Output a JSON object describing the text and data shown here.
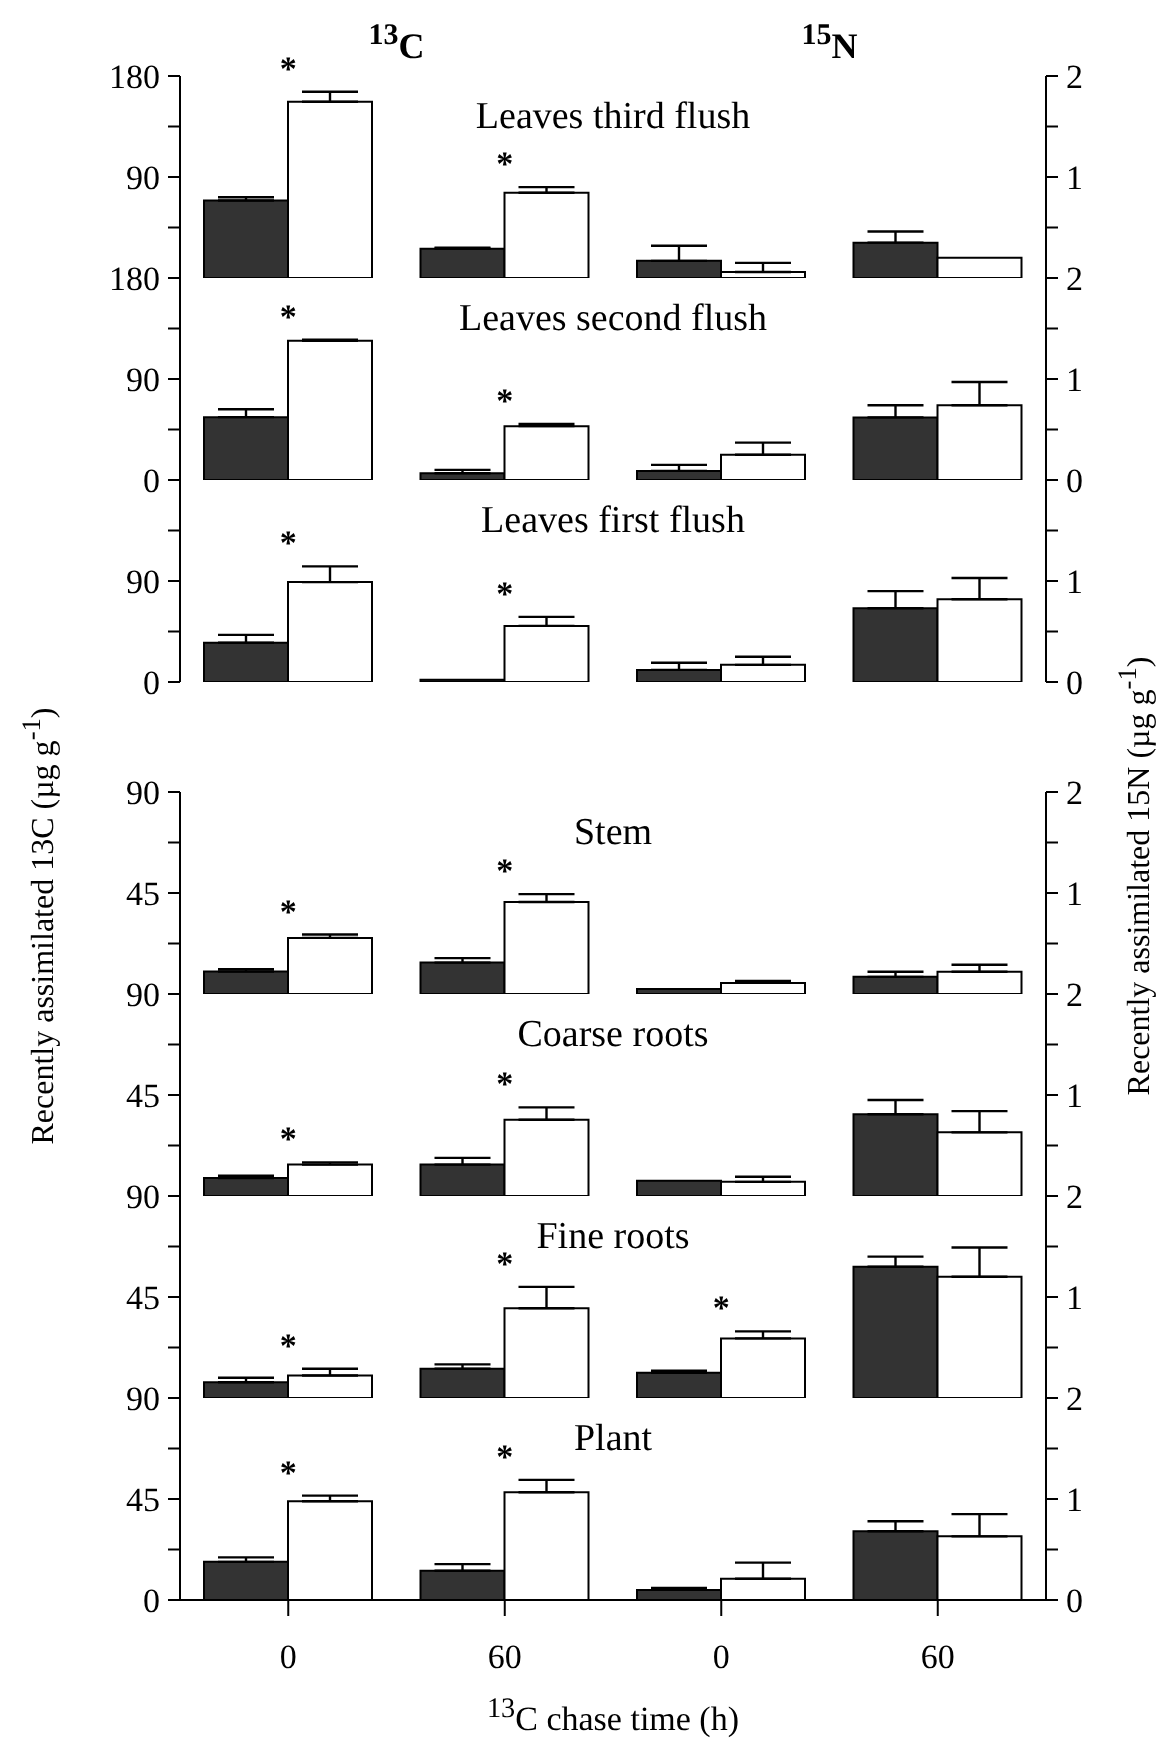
{
  "chart_data": [
    {
      "type": "other",
      "annotations": [
        "$^{13}$C",
        "$^{15}$N"
      ]
    },
    {
      "type": "bar",
      "title": "Leaves third flush",
      "categories": [
        "0",
        "60",
        "0",
        "60"
      ],
      "ylim": [
        0,
        180
      ],
      "yticks": [
        {
          "value": 0,
          "label": null
        },
        {
          "value": 45,
          "label": null
        },
        90,
        {
          "value": 135,
          "label": null
        },
        180
      ],
      "y2lim": [
        0,
        2
      ],
      "y2ticks": [
        {
          "value": 0,
          "label": null
        },
        {
          "value": 0.5,
          "label": null
        },
        1,
        {
          "value": 1.5,
          "label": null
        },
        2
      ],
      "tick_labels": "y",
      "series": [
        {
          "color": "#333333",
          "values": [
            69,
            26,
            null,
            null
          ],
          "errors": [
            3,
            1,
            null,
            null
          ]
        },
        {
          "color": "#ffffff",
          "values": [
            157,
            76,
            null,
            null
          ],
          "errors": [
            9,
            5,
            null,
            null
          ]
        },
        {
          "color": "#333333",
          "axis": "y2",
          "values": [
            null,
            null,
            0.17,
            0.35
          ],
          "errors": [
            null,
            null,
            0.15,
            0.11
          ]
        },
        {
          "color": "#ffffff",
          "axis": "y2",
          "values": [
            null,
            null,
            0.06,
            0.2
          ],
          "errors": [
            null,
            null,
            0.09,
            null
          ]
        }
      ],
      "annotations": [
        "*",
        "*"
      ]
    },
    {
      "type": "bar",
      "title": "Leaves second flush",
      "categories": [
        "0",
        "60",
        "0",
        "60"
      ],
      "ylim": [
        0,
        180
      ],
      "yticks": [
        0,
        {
          "value": 45,
          "label": null
        },
        90,
        {
          "value": 135,
          "label": null
        },
        180
      ],
      "y2lim": [
        0,
        2
      ],
      "y2ticks": [
        0,
        {
          "value": 0.5,
          "label": null
        },
        1,
        {
          "value": 1.5,
          "label": null
        },
        2
      ],
      "tick_labels": "y",
      "series": [
        {
          "color": "#333333",
          "values": [
            56,
            6,
            null,
            null
          ],
          "errors": [
            7,
            3,
            null,
            null
          ]
        },
        {
          "color": "#ffffff",
          "values": [
            124,
            48,
            null,
            null
          ],
          "errors": [
            1,
            2,
            null,
            null
          ]
        },
        {
          "color": "#333333",
          "axis": "y2",
          "values": [
            null,
            null,
            0.09,
            0.62
          ],
          "errors": [
            null,
            null,
            0.06,
            0.12
          ]
        },
        {
          "color": "#ffffff",
          "axis": "y2",
          "values": [
            null,
            null,
            0.25,
            0.74
          ],
          "errors": [
            null,
            null,
            0.12,
            0.23
          ]
        }
      ],
      "annotations": [
        "*",
        "*"
      ]
    },
    {
      "type": "bar",
      "title": "Leaves first flush",
      "categories": [
        "0",
        "60",
        "0",
        "60"
      ],
      "ylim": [
        0,
        180
      ],
      "yticks": [
        0,
        {
          "value": 45,
          "label": null
        },
        90,
        {
          "value": 135,
          "label": null
        },
        {
          "value": 180,
          "label": null
        }
      ],
      "y2lim": [
        0,
        2
      ],
      "y2ticks": [
        0,
        {
          "value": 0.5,
          "label": null
        },
        1,
        {
          "value": 1.5,
          "label": null
        },
        {
          "value": 2,
          "label": null
        }
      ],
      "tick_labels": "y",
      "series": [
        {
          "color": "#333333",
          "values": [
            35,
            2,
            null,
            null
          ],
          "errors": [
            7,
            null,
            null,
            null
          ]
        },
        {
          "color": "#ffffff",
          "values": [
            89,
            50,
            null,
            null
          ],
          "errors": [
            14,
            8,
            null,
            null
          ]
        },
        {
          "color": "#333333",
          "axis": "y2",
          "values": [
            null,
            null,
            0.12,
            0.73
          ],
          "errors": [
            null,
            null,
            0.07,
            0.17
          ]
        },
        {
          "color": "#ffffff",
          "axis": "y2",
          "values": [
            null,
            null,
            0.17,
            0.82
          ],
          "errors": [
            null,
            null,
            0.08,
            0.21
          ]
        }
      ],
      "annotations": [
        "*",
        "*"
      ]
    },
    {
      "type": "bar",
      "title": "Stem",
      "categories": [
        "0",
        "60",
        "0",
        "60"
      ],
      "ylim": [
        0,
        90
      ],
      "yticks": [
        {
          "value": 0,
          "label": null
        },
        {
          "value": 22.5,
          "label": null
        },
        45,
        {
          "value": 67.5,
          "label": null
        },
        90
      ],
      "y2lim": [
        0,
        2
      ],
      "y2ticks": [
        {
          "value": 0,
          "label": null
        },
        {
          "value": 0.5,
          "label": null
        },
        1,
        {
          "value": 1.5,
          "label": null
        },
        2
      ],
      "tick_labels": "y",
      "ylabel": "Recently assimilated 13C (µg g$^{-1}$)",
      "y2label": "Recently assimilated 15N (µg g$^{-1}$)",
      "series": [
        {
          "color": "#333333",
          "values": [
            10,
            14,
            null,
            null
          ],
          "errors": [
            1,
            2,
            null,
            null
          ]
        },
        {
          "color": "#ffffff",
          "values": [
            25,
            41,
            null,
            null
          ],
          "errors": [
            1.5,
            3.5,
            null,
            null
          ]
        },
        {
          "color": "#333333",
          "axis": "y2",
          "values": [
            null,
            null,
            0.05,
            0.17
          ],
          "errors": [
            null,
            null,
            null,
            0.05
          ]
        },
        {
          "color": "#ffffff",
          "axis": "y2",
          "values": [
            null,
            null,
            0.11,
            0.22
          ],
          "errors": [
            null,
            null,
            0.02,
            0.07
          ]
        }
      ],
      "annotations": [
        "*",
        "*"
      ]
    },
    {
      "type": "bar",
      "title": "Coarse roots",
      "categories": [
        "0",
        "60",
        "0",
        "60"
      ],
      "ylim": [
        0,
        90
      ],
      "yticks": [
        {
          "value": 0,
          "label": null
        },
        {
          "value": 22.5,
          "label": null
        },
        45,
        {
          "value": 67.5,
          "label": null
        },
        90
      ],
      "y2lim": [
        0,
        2
      ],
      "y2ticks": [
        {
          "value": 0,
          "label": null
        },
        {
          "value": 0.5,
          "label": null
        },
        1,
        {
          "value": 1.5,
          "label": null
        },
        2
      ],
      "tick_labels": "y",
      "series": [
        {
          "color": "#333333",
          "values": [
            8,
            14,
            null,
            null
          ],
          "errors": [
            1,
            3,
            null,
            null
          ]
        },
        {
          "color": "#ffffff",
          "values": [
            14,
            34,
            null,
            null
          ],
          "errors": [
            1,
            5.5,
            null,
            null
          ]
        },
        {
          "color": "#333333",
          "axis": "y2",
          "values": [
            null,
            null,
            0.15,
            0.81
          ],
          "errors": [
            null,
            null,
            null,
            0.14
          ]
        },
        {
          "color": "#ffffff",
          "axis": "y2",
          "values": [
            null,
            null,
            0.14,
            0.63
          ],
          "errors": [
            null,
            null,
            0.05,
            0.21
          ]
        }
      ],
      "annotations": [
        "*",
        "*"
      ]
    },
    {
      "type": "bar",
      "title": "Fine roots",
      "categories": [
        "0",
        "60",
        "0",
        "60"
      ],
      "ylim": [
        0,
        90
      ],
      "yticks": [
        {
          "value": 0,
          "label": null
        },
        {
          "value": 22.5,
          "label": null
        },
        45,
        {
          "value": 67.5,
          "label": null
        },
        90
      ],
      "y2lim": [
        0,
        2
      ],
      "y2ticks": [
        {
          "value": 0,
          "label": null
        },
        {
          "value": 0.5,
          "label": null
        },
        1,
        {
          "value": 1.5,
          "label": null
        },
        2
      ],
      "tick_labels": "y",
      "series": [
        {
          "color": "#333333",
          "values": [
            7,
            13,
            null,
            null
          ],
          "errors": [
            2,
            2,
            null,
            null
          ]
        },
        {
          "color": "#ffffff",
          "values": [
            10,
            40,
            null,
            null
          ],
          "errors": [
            3,
            9.5,
            null,
            null
          ]
        },
        {
          "color": "#333333",
          "axis": "y2",
          "values": [
            null,
            null,
            0.25,
            1.3
          ],
          "errors": [
            null,
            null,
            0.02,
            0.1
          ]
        },
        {
          "color": "#ffffff",
          "axis": "y2",
          "values": [
            null,
            null,
            0.59,
            1.2
          ],
          "errors": [
            null,
            null,
            0.07,
            0.29
          ]
        }
      ],
      "annotations": [
        "*",
        "*",
        "*"
      ]
    },
    {
      "type": "bar",
      "title": "Plant",
      "categories": [
        "0",
        "60",
        "0",
        "60"
      ],
      "ylim": [
        0,
        90
      ],
      "yticks": [
        0,
        {
          "value": 22.5,
          "label": null
        },
        45,
        {
          "value": 67.5,
          "label": null
        },
        90
      ],
      "y2lim": [
        0,
        2
      ],
      "y2ticks": [
        0,
        {
          "value": 0.5,
          "label": null
        },
        1,
        {
          "value": 1.5,
          "label": null
        },
        2
      ],
      "xlabel": "$^{13}$C chase time (h)",
      "series": [
        {
          "color": "#333333",
          "values": [
            17,
            13,
            null,
            null
          ],
          "errors": [
            2,
            3,
            null,
            null
          ]
        },
        {
          "color": "#ffffff",
          "values": [
            44,
            48,
            null,
            null
          ],
          "errors": [
            2.5,
            5.5,
            null,
            null
          ]
        },
        {
          "color": "#333333",
          "axis": "y2",
          "values": [
            null,
            null,
            0.1,
            0.68
          ],
          "errors": [
            null,
            null,
            0.02,
            0.1
          ]
        },
        {
          "color": "#ffffff",
          "axis": "y2",
          "values": [
            null,
            null,
            0.21,
            0.63
          ],
          "errors": [
            null,
            null,
            0.16,
            0.22
          ]
        }
      ],
      "annotations": [
        "*",
        "*"
      ]
    }
  ]
}
